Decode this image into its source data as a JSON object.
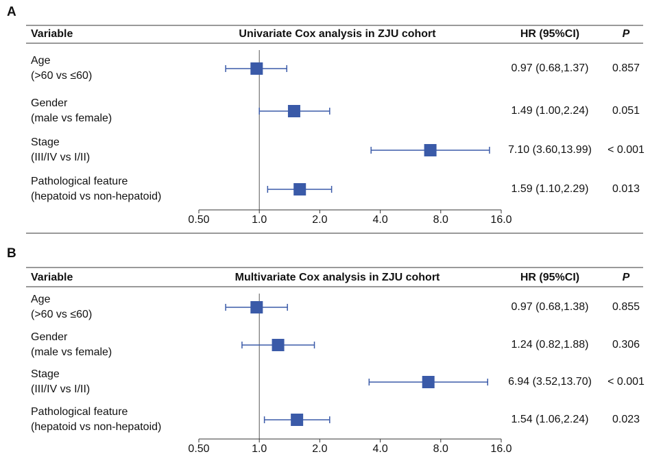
{
  "chart_data": [
    {
      "type": "forest",
      "panel": "A",
      "title": "Univariate Cox analysis in ZJU cohort",
      "variable_header": "Variable",
      "hr_header": "HR (95%CI)",
      "p_header": "P",
      "categories": [
        "Age",
        "Gender",
        "Stage",
        "Pathological feature"
      ],
      "subcategories": [
        "(>60 vs ≤60)",
        "(male vs female)",
        "(III/IV vs I/II)",
        "(hepatoid vs non-hepatoid)"
      ],
      "values": [
        0.97,
        1.49,
        7.1,
        1.59
      ],
      "lower": [
        0.68,
        1.0,
        3.6,
        1.1
      ],
      "upper": [
        1.37,
        2.24,
        13.99,
        2.29
      ],
      "value_labels": [
        "0.97 (0.68,1.37)",
        "1.49 (1.00,2.24)",
        "7.10 (3.60,13.99)",
        "1.59 (1.10,2.29)"
      ],
      "p_values": [
        "0.857",
        "0.051",
        "< 0.001",
        "0.013"
      ],
      "color": "#3a5aa8",
      "x_log": true,
      "reference": 1,
      "xlim": [
        0.5,
        16
      ],
      "xticks": [
        {
          "value": 0.5,
          "label": "0.50"
        },
        {
          "value": 1,
          "label": "1.0"
        },
        {
          "value": 2,
          "label": "2.0"
        },
        {
          "value": 4,
          "label": "4.0"
        },
        {
          "value": 8,
          "label": "8.0"
        },
        {
          "value": 16,
          "label": "16.0"
        }
      ]
    },
    {
      "type": "forest",
      "panel": "B",
      "title": "Multivariate Cox analysis in ZJU cohort",
      "variable_header": "Variable",
      "hr_header": "HR (95%CI)",
      "p_header": "P",
      "categories": [
        "Age",
        "Gender",
        "Stage",
        "Pathological feature"
      ],
      "subcategories": [
        "(>60 vs ≤60)",
        "(male vs female)",
        "(III/IV vs I/II)",
        "(hepatoid vs non-hepatoid)"
      ],
      "values": [
        0.97,
        1.24,
        6.94,
        1.54
      ],
      "lower": [
        0.68,
        0.82,
        3.52,
        1.06
      ],
      "upper": [
        1.38,
        1.88,
        13.7,
        2.24
      ],
      "value_labels": [
        "0.97 (0.68,1.38)",
        "1.24 (0.82,1.88)",
        "6.94 (3.52,13.70)",
        "1.54 (1.06,2.24)"
      ],
      "p_values": [
        "0.855",
        "0.306",
        "< 0.001",
        "0.023"
      ],
      "color": "#3a5aa8",
      "x_log": true,
      "reference": 1,
      "xlim": [
        0.5,
        16
      ],
      "xticks": [
        {
          "value": 0.5,
          "label": "0.50"
        },
        {
          "value": 1,
          "label": "1.0"
        },
        {
          "value": 2,
          "label": "2.0"
        },
        {
          "value": 4,
          "label": "4.0"
        },
        {
          "value": 8,
          "label": "8.0"
        },
        {
          "value": 16,
          "label": "16.0"
        }
      ]
    }
  ]
}
